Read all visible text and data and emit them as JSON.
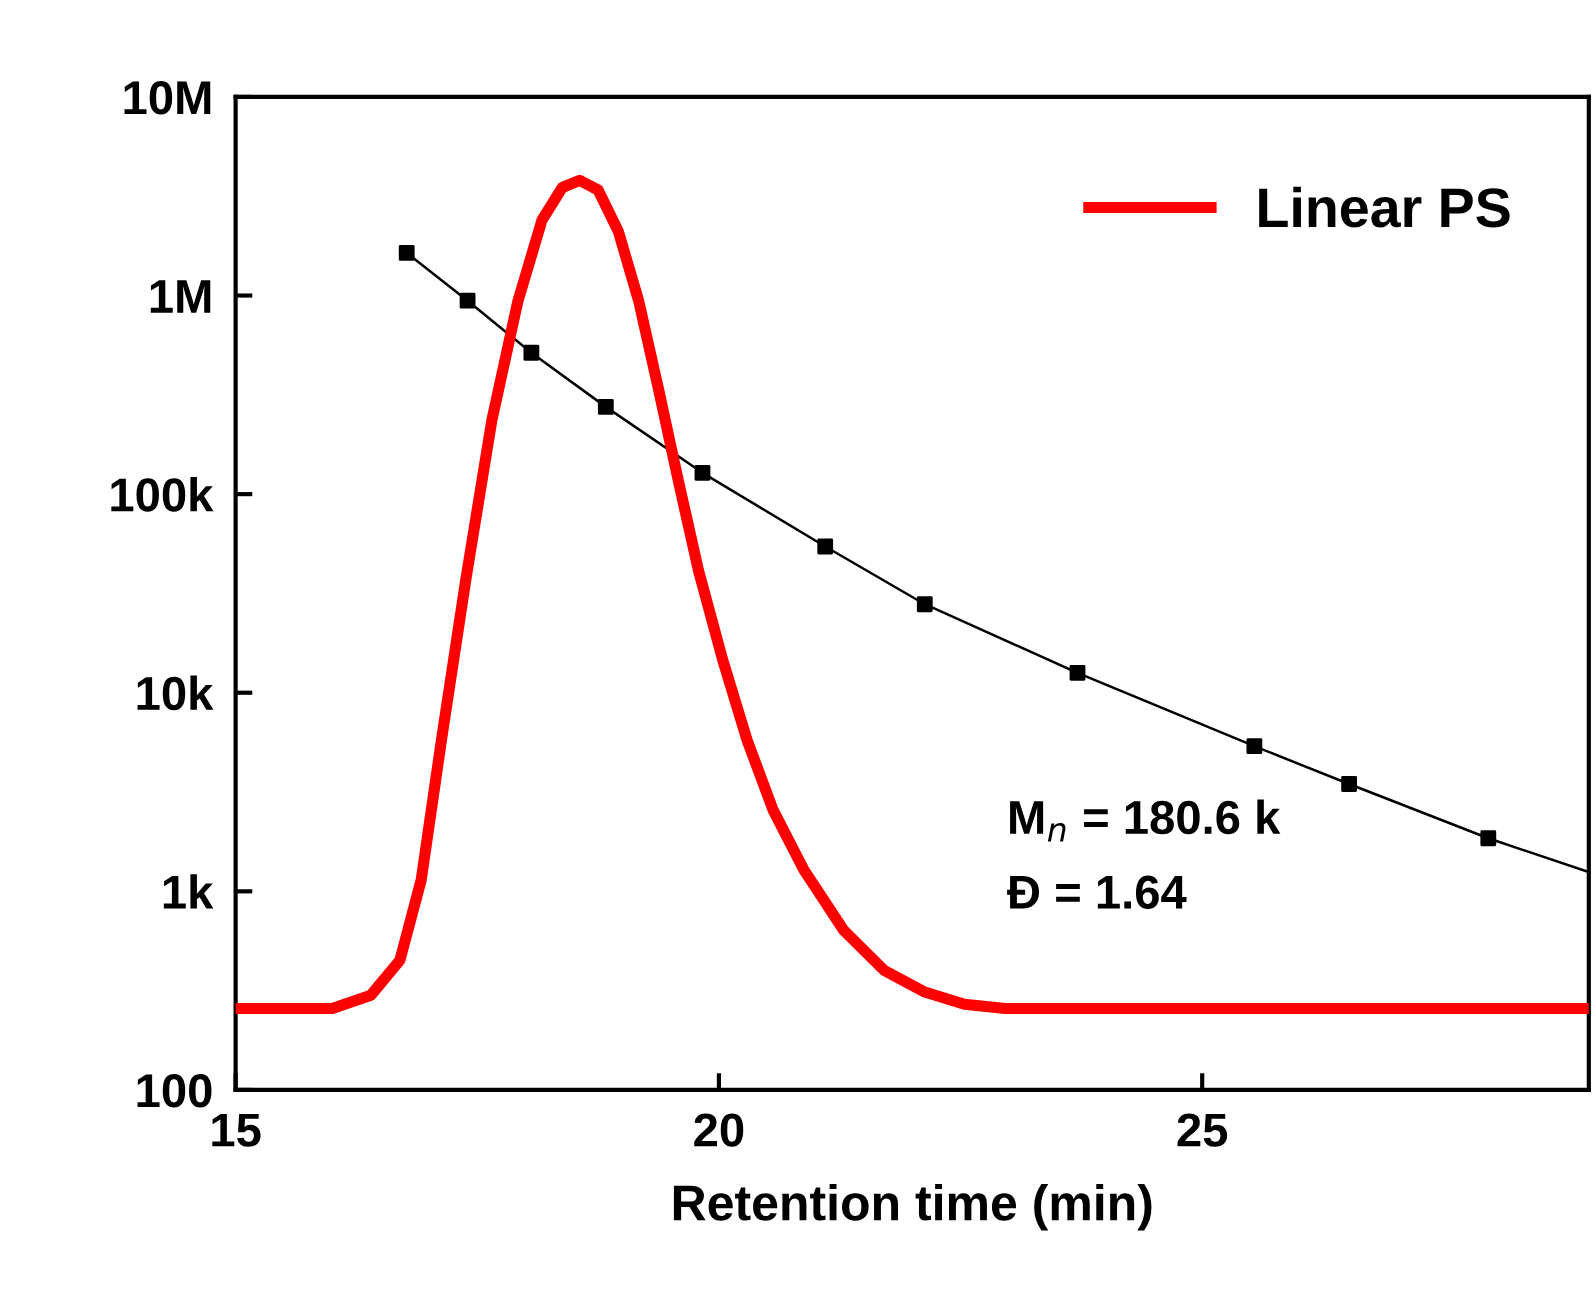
{
  "chart_data": {
    "type": "line",
    "xlabel": "Retention time (min)",
    "log": "y",
    "xlim": [
      15,
      29
    ],
    "ylim": [
      100,
      10000000
    ],
    "xticks": [
      15,
      20,
      25
    ],
    "yticks": [
      {
        "value": 100,
        "label": "100"
      },
      {
        "value": 1000,
        "label": "1k"
      },
      {
        "value": 10000,
        "label": "10k"
      },
      {
        "value": 100000,
        "label": "100k"
      },
      {
        "value": 1000000,
        "label": "1M"
      },
      {
        "value": 10000000,
        "label": "10M"
      }
    ],
    "grid": false,
    "legend": "top right",
    "series": [
      {
        "name": "Linear PS",
        "color": "#ff0000",
        "marker": "none",
        "x": [
          15,
          16,
          16.4,
          16.7,
          16.92,
          17.13,
          17.38,
          17.65,
          17.92,
          18.17,
          18.38,
          18.56,
          18.75,
          18.96,
          19.17,
          19.38,
          19.58,
          19.79,
          20.04,
          20.29,
          20.56,
          20.88,
          21.29,
          21.71,
          22.13,
          22.54,
          22.96,
          25,
          29
        ],
        "values": [
          257,
          257,
          300,
          450,
          1140,
          5800,
          36700,
          234000,
          935000,
          2400000,
          3500000,
          3800000,
          3400000,
          2100000,
          940000,
          330000,
          117000,
          41000,
          14600,
          5800,
          2570,
          1280,
          638,
          400,
          311,
          270,
          257,
          257,
          257
        ]
      },
      {
        "type": "scatter",
        "color": "#000000",
        "marker": "square",
        "x": [
          16.77,
          17.4,
          18.06,
          18.83,
          19.83,
          21.1,
          22.13,
          23.71,
          25.54,
          26.52,
          27.96
        ],
        "values": [
          1640000,
          942000,
          515000,
          275000,
          128000,
          54500,
          27900,
          12600,
          5380,
          3470,
          1850
        ]
      },
      {
        "color": "#000000",
        "marker": "none",
        "x": [
          16.77,
          17.4,
          18.06,
          18.83,
          19.83,
          21.1,
          22.13,
          23.71,
          25.54,
          26.52,
          27.96,
          29
        ],
        "values": [
          1640000,
          942000,
          515000,
          275000,
          128000,
          54500,
          27900,
          12600,
          5380,
          3470,
          1850,
          1250
        ]
      }
    ],
    "annotations": [
      "M$_{n}$ = 180.6 k",
      "Đ = 1.64"
    ]
  }
}
